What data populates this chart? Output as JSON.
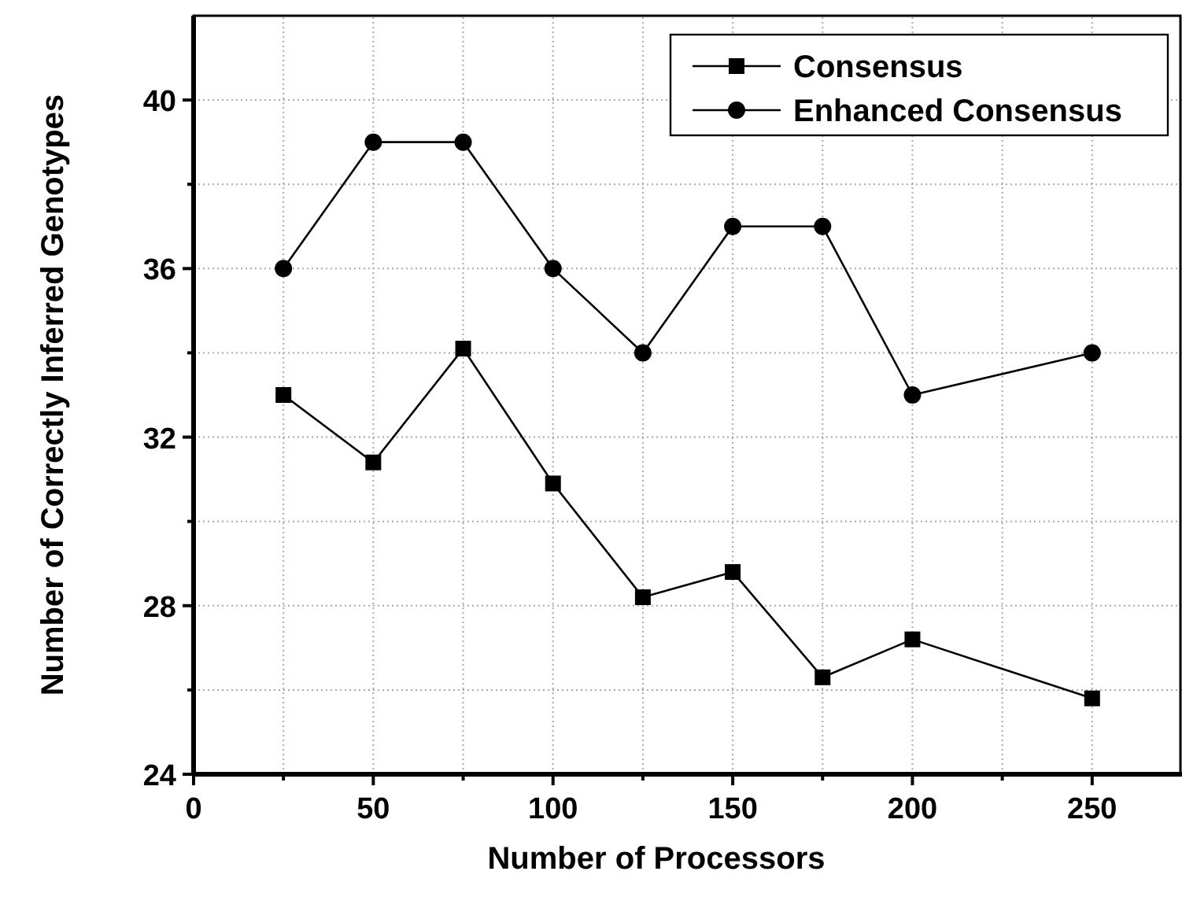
{
  "chart_data": {
    "type": "line",
    "xlabel": "Number of Processors",
    "ylabel": "Number of Correctly Inferred Genotypes",
    "x": [
      25,
      50,
      75,
      100,
      125,
      150,
      175,
      200,
      250
    ],
    "series": [
      {
        "name": "Consensus",
        "color": "#000000",
        "marker": "square",
        "values": [
          33,
          31.4,
          34.1,
          30.9,
          28.2,
          28.8,
          26.3,
          27.2,
          25.8
        ]
      },
      {
        "name": "Enhanced Consensus",
        "color": "#000000",
        "marker": "circle",
        "values": [
          36,
          39,
          39,
          36,
          34,
          37,
          37,
          33,
          34
        ]
      }
    ],
    "xlim": [
      0,
      275
    ],
    "xticks": [
      0,
      {
        "value": 25,
        "label": null
      },
      50,
      {
        "value": 75,
        "label": null
      },
      100,
      {
        "value": 125,
        "label": null
      },
      150,
      {
        "value": 175,
        "label": null
      },
      200,
      {
        "value": 225,
        "label": null
      },
      250
    ],
    "ylim": [
      24,
      42
    ],
    "yticks": [
      24,
      {
        "value": 26,
        "label": null
      },
      28,
      {
        "value": 30,
        "label": null
      },
      32,
      {
        "value": 34,
        "label": null
      },
      36,
      {
        "value": 38,
        "label": null
      },
      40
    ],
    "grid": true,
    "legend": "top right"
  }
}
